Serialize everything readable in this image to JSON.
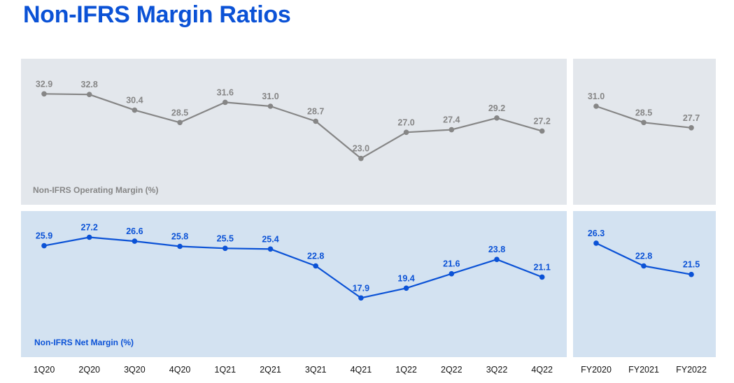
{
  "page_title": "Non-IFRS Margin Ratios",
  "colors": {
    "title": "#0b52d6",
    "op_panel_bg": "#e3e7ec",
    "op_series": "#868686",
    "net_panel_bg": "#d3e2f1",
    "net_series": "#0b52d6",
    "axis_text": "#111111"
  },
  "chart_data": [
    {
      "type": "line",
      "title": "Non-IFRS Operating Margin (%)",
      "categories": [
        "1Q20",
        "2Q20",
        "3Q20",
        "4Q20",
        "1Q21",
        "2Q21",
        "3Q21",
        "4Q21",
        "1Q22",
        "2Q22",
        "3Q22",
        "4Q22"
      ],
      "values": [
        32.9,
        32.8,
        30.4,
        28.5,
        31.6,
        31.0,
        28.7,
        23.0,
        27.0,
        27.4,
        29.2,
        27.2
      ],
      "labels": [
        "32.9",
        "32.8",
        "30.4",
        "28.5",
        "31.6",
        "31.0",
        "28.7",
        "23.0",
        "27.0",
        "27.4",
        "29.2",
        "27.2"
      ],
      "ylim": [
        16,
        40
      ],
      "grid": false
    },
    {
      "type": "line",
      "title": "",
      "categories": [
        "FY2020",
        "FY2021",
        "FY2022"
      ],
      "values": [
        31.0,
        28.5,
        27.7
      ],
      "labels": [
        "31.0",
        "28.5",
        "27.7"
      ],
      "ylim": [
        16,
        40
      ],
      "grid": false
    },
    {
      "type": "line",
      "title": "Non-IFRS Net Margin (%)",
      "categories": [
        "1Q20",
        "2Q20",
        "3Q20",
        "4Q20",
        "1Q21",
        "2Q21",
        "3Q21",
        "4Q21",
        "1Q22",
        "2Q22",
        "3Q22",
        "4Q22"
      ],
      "values": [
        25.9,
        27.2,
        26.6,
        25.8,
        25.5,
        25.4,
        22.8,
        17.9,
        19.4,
        21.6,
        23.8,
        21.1
      ],
      "labels": [
        "25.9",
        "27.2",
        "26.6",
        "25.8",
        "25.5",
        "25.4",
        "22.8",
        "17.9",
        "19.4",
        "21.6",
        "23.8",
        "21.1"
      ],
      "ylim": [
        10,
        34
      ],
      "grid": false
    },
    {
      "type": "line",
      "title": "",
      "categories": [
        "FY2020",
        "FY2021",
        "FY2022"
      ],
      "values": [
        26.3,
        22.8,
        21.5
      ],
      "labels": [
        "26.3",
        "22.8",
        "21.5"
      ],
      "ylim": [
        10,
        34
      ],
      "grid": false
    }
  ]
}
